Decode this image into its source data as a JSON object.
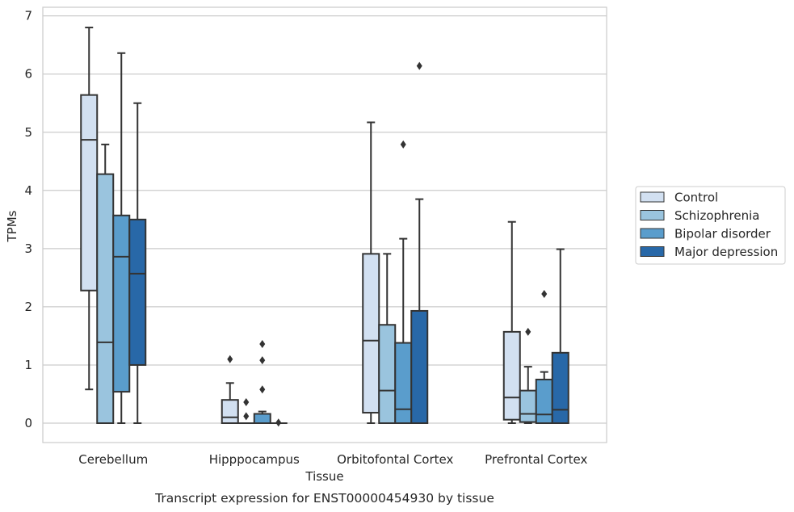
{
  "caption": "Transcript expression for ENST00000454930 by tissue",
  "chart_data": {
    "type": "box",
    "xlabel": "Tissue",
    "ylabel": "TPMs",
    "ylim": [
      -0.33,
      7.15
    ],
    "yticks": [
      0,
      1,
      2,
      3,
      4,
      5,
      6,
      7
    ],
    "grid": "horizontal",
    "legend_position": "right",
    "categories": [
      "Cerebellum",
      "Hipppocampus",
      "Orbitofontal Cortex",
      "Prefrontal Cortex"
    ],
    "series": [
      {
        "name": "Control",
        "color": "#d2e0f1",
        "boxes": [
          {
            "whislo": 0.58,
            "q1": 2.28,
            "med": 4.87,
            "q3": 5.64,
            "whishi": 6.8,
            "fliers": []
          },
          {
            "whislo": 0.0,
            "q1": 0.0,
            "med": 0.1,
            "q3": 0.4,
            "whishi": 0.69,
            "fliers": [
              1.1
            ]
          },
          {
            "whislo": 0.0,
            "q1": 0.18,
            "med": 1.42,
            "q3": 2.91,
            "whishi": 5.17,
            "fliers": []
          },
          {
            "whislo": 0.0,
            "q1": 0.06,
            "med": 0.44,
            "q3": 1.57,
            "whishi": 3.46,
            "fliers": []
          }
        ]
      },
      {
        "name": "Schizophrenia",
        "color": "#9ac4de",
        "boxes": [
          {
            "whislo": 0.0,
            "q1": 0.0,
            "med": 1.39,
            "q3": 4.28,
            "whishi": 4.79,
            "fliers": []
          },
          {
            "whislo": 0.0,
            "q1": 0.0,
            "med": 0.0,
            "q3": 0.0,
            "whishi": 0.0,
            "fliers": [
              0.12,
              0.36
            ]
          },
          {
            "whislo": 0.0,
            "q1": 0.0,
            "med": 0.56,
            "q3": 1.69,
            "whishi": 2.91,
            "fliers": []
          },
          {
            "whislo": 0.0,
            "q1": 0.02,
            "med": 0.16,
            "q3": 0.56,
            "whishi": 0.97,
            "fliers": [
              1.57
            ]
          }
        ]
      },
      {
        "name": "Bipolar disorder",
        "color": "#5a9dcc",
        "boxes": [
          {
            "whislo": 0.0,
            "q1": 0.54,
            "med": 2.86,
            "q3": 3.57,
            "whishi": 6.36,
            "fliers": []
          },
          {
            "whislo": 0.0,
            "q1": 0.0,
            "med": 0.0,
            "q3": 0.16,
            "whishi": 0.2,
            "fliers": [
              0.58,
              1.08,
              1.36
            ]
          },
          {
            "whislo": 0.0,
            "q1": 0.0,
            "med": 0.24,
            "q3": 1.38,
            "whishi": 3.17,
            "fliers": [
              4.79
            ]
          },
          {
            "whislo": 0.0,
            "q1": 0.0,
            "med": 0.15,
            "q3": 0.75,
            "whishi": 0.88,
            "fliers": [
              2.22
            ]
          }
        ]
      },
      {
        "name": "Major depression",
        "color": "#2868a8",
        "boxes": [
          {
            "whislo": 0.0,
            "q1": 1.0,
            "med": 2.57,
            "q3": 3.5,
            "whishi": 5.5,
            "fliers": []
          },
          {
            "whislo": 0.0,
            "q1": 0.0,
            "med": 0.0,
            "q3": 0.0,
            "whishi": 0.0,
            "fliers": [
              0.01
            ]
          },
          {
            "whislo": 0.0,
            "q1": 0.0,
            "med": 0.0,
            "q3": 1.93,
            "whishi": 3.85,
            "fliers": [
              6.14
            ]
          },
          {
            "whislo": 0.0,
            "q1": 0.0,
            "med": 0.23,
            "q3": 1.21,
            "whishi": 2.99,
            "fliers": []
          }
        ]
      }
    ]
  },
  "colors": {
    "grid": "#cccccc",
    "frame": "#cccccc",
    "line": "#333333",
    "text": "#262626"
  }
}
